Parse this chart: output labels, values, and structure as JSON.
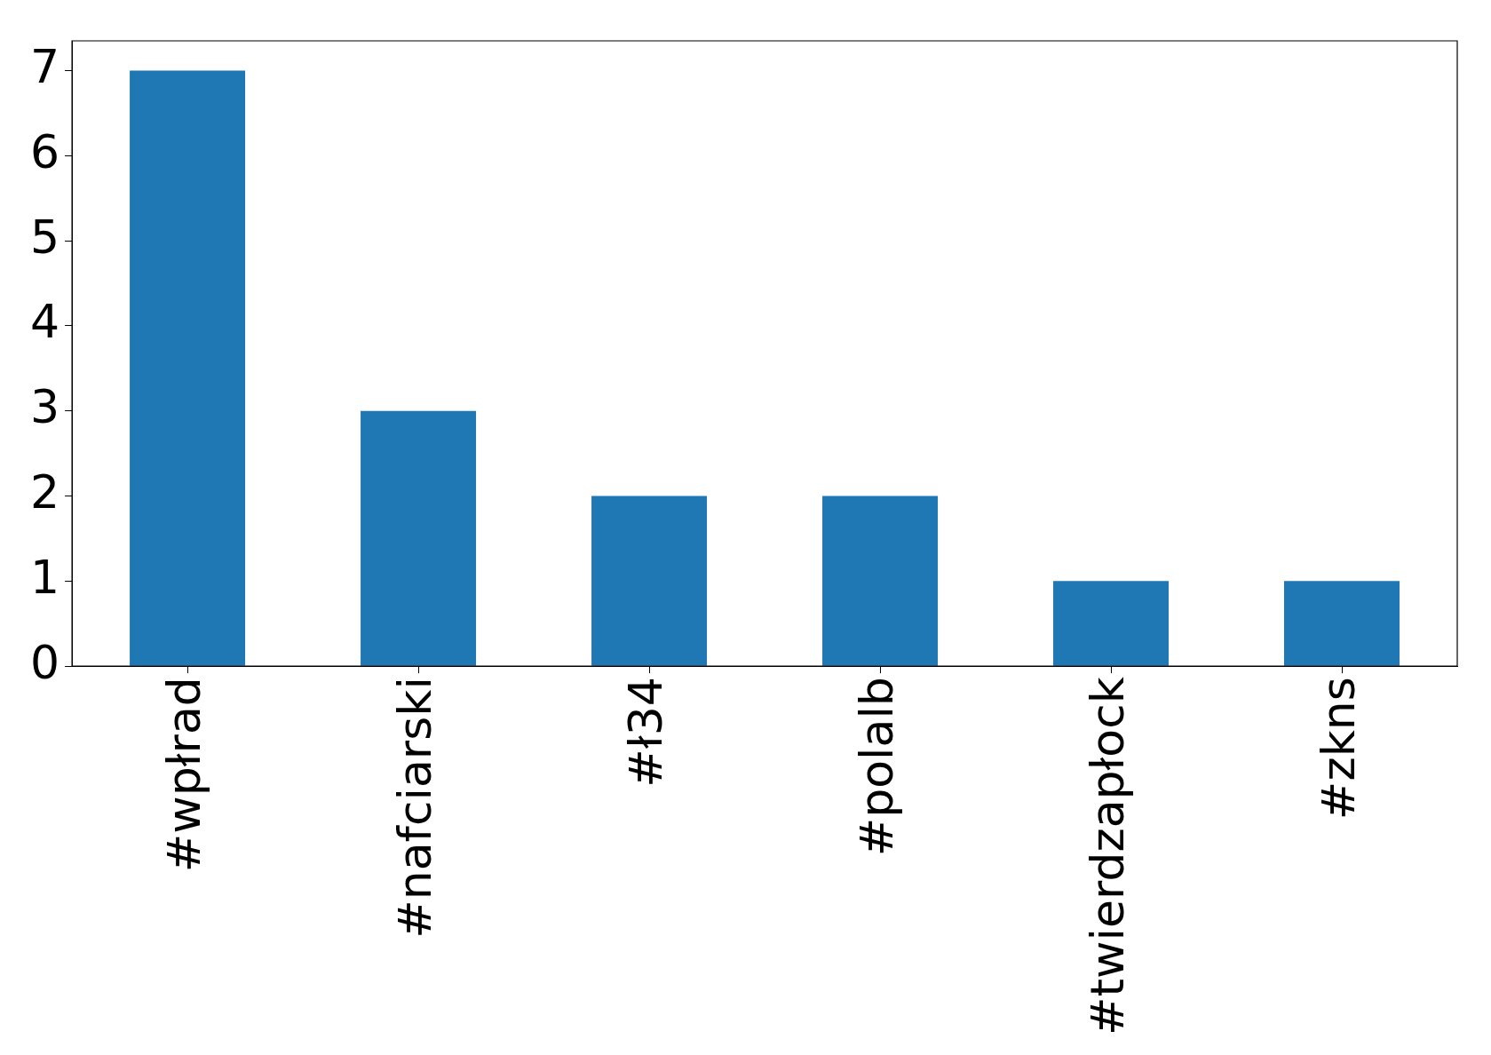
{
  "chart_data": {
    "type": "bar",
    "categories": [
      "#wpłrad",
      "#nafciarski",
      "#ł34",
      "#polalb",
      "#twierdzapłock",
      "#zkns"
    ],
    "values": [
      7,
      3,
      2,
      2,
      1,
      1
    ],
    "color": "#1f77b4",
    "ylim": [
      0,
      7.35
    ],
    "yticks": [
      0,
      1,
      2,
      3,
      4,
      5,
      6,
      7
    ],
    "grid": false,
    "legend": false
  }
}
